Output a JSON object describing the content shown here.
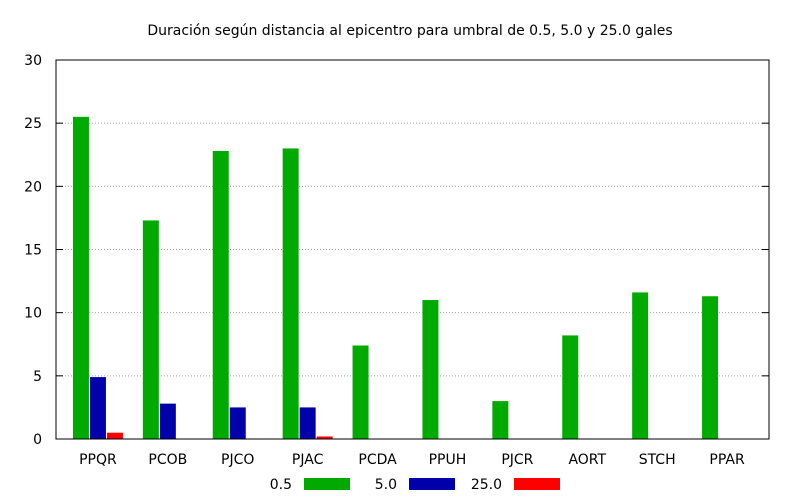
{
  "chart_data": {
    "type": "bar",
    "title": "Duración según distancia al epicentro para umbral de 0.5, 5.0 y 25.0 gales",
    "xlabel": "",
    "ylabel": "",
    "categories": [
      "PPQR",
      "PCOB",
      "PJCO",
      "PJAC",
      "PCDA",
      "PPUH",
      "PJCR",
      "AORT",
      "STCH",
      "PPAR"
    ],
    "series": [
      {
        "name": "0.5",
        "color": "#00aa00",
        "values": [
          25.5,
          17.3,
          22.8,
          23.0,
          7.4,
          11.0,
          3.0,
          8.2,
          11.6,
          11.3
        ]
      },
      {
        "name": "5.0",
        "color": "#0000aa",
        "values": [
          4.9,
          2.8,
          2.5,
          2.5,
          0,
          0,
          0,
          0,
          0,
          0
        ]
      },
      {
        "name": "25.0",
        "color": "#ff0000",
        "values": [
          0.5,
          0,
          0,
          0.2,
          0,
          0,
          0,
          0,
          0,
          0
        ]
      }
    ],
    "ylim": [
      0,
      30
    ],
    "yticks": [
      0,
      5,
      10,
      15,
      20,
      25,
      30
    ],
    "grid": true,
    "legend_position": "bottom"
  }
}
